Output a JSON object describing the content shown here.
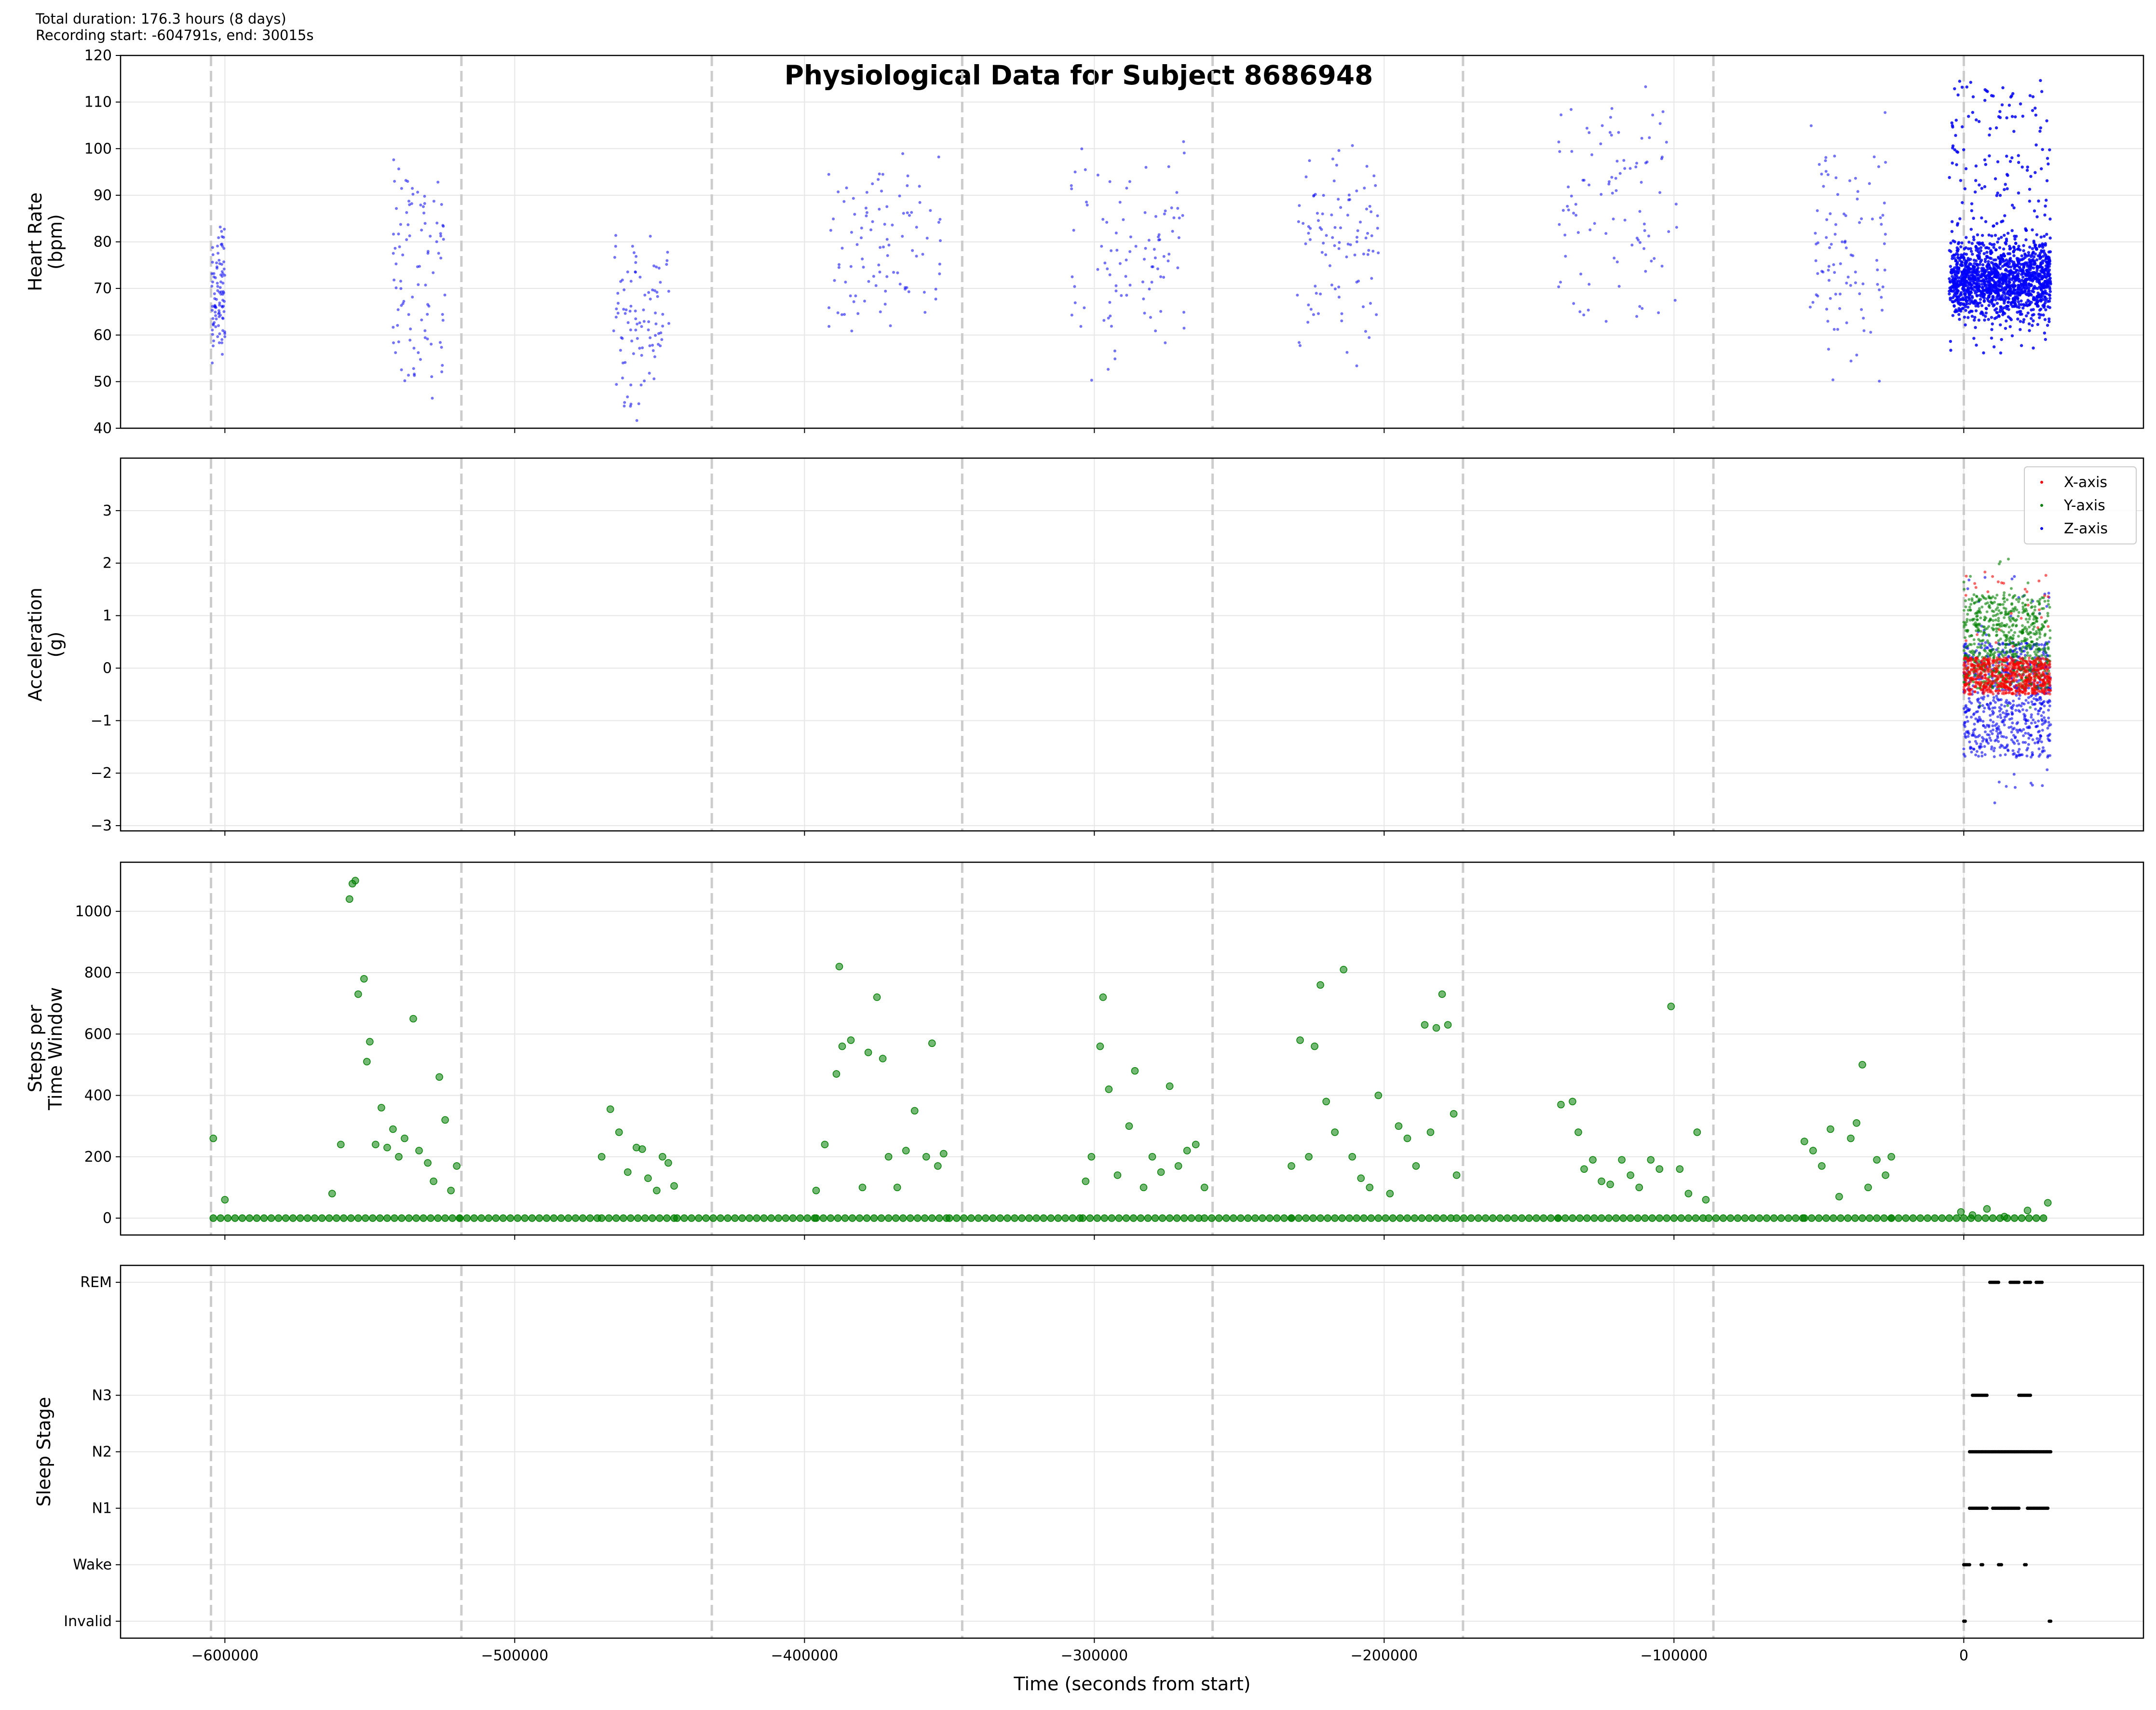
{
  "header": {
    "duration_line": "Total duration: 176.3 hours (8 days)",
    "recording_line": "Recording start: -604791s, end: 30015s"
  },
  "title": "Physiological Data for Subject 8686948",
  "colors": {
    "heart_rate": "#0000ff",
    "x_axis": "#ff0000",
    "y_axis": "#008000",
    "z_axis": "#0000ff",
    "steps": "#008000",
    "sleep": "#000000",
    "day_marker": "#cccccc",
    "grid": "#e6e6e6"
  },
  "chart_data": [
    {
      "id": "hr",
      "type": "scatter",
      "ylabel": [
        "Heart Rate",
        "(bpm)"
      ],
      "xlim": [
        -636000,
        62000
      ],
      "ylim": [
        40,
        120
      ],
      "yticks": [
        40,
        50,
        60,
        70,
        80,
        90,
        100,
        110,
        120
      ],
      "series": [
        {
          "name": "",
          "color": "#0000ff",
          "clusters": [
            {
              "x": [
                -604500,
                -600000
              ],
              "y": [
                53,
                86
              ]
            },
            {
              "x": [
                -542000,
                -524000
              ],
              "y": [
                44,
                103
              ]
            },
            {
              "x": [
                -466000,
                -446000
              ],
              "y": [
                41,
                85
              ]
            },
            {
              "x": [
                -392000,
                -353000
              ],
              "y": [
                57,
                102
              ]
            },
            {
              "x": [
                -308000,
                -268000
              ],
              "y": [
                47,
                104
              ]
            },
            {
              "x": [
                -230000,
                -202000
              ],
              "y": [
                52,
                107
              ]
            },
            {
              "x": [
                -140000,
                -99000
              ],
              "y": [
                57,
                117
              ]
            },
            {
              "x": [
                -53000,
                -27000
              ],
              "y": [
                43,
                113
              ]
            },
            {
              "x": [
                -5000,
                30000
              ],
              "y": [
                56,
                115
              ],
              "dense": true
            }
          ]
        }
      ]
    },
    {
      "id": "acc",
      "type": "scatter",
      "ylabel": [
        "Acceleration",
        "(g)"
      ],
      "xlim": [
        -636000,
        62000
      ],
      "ylim": [
        -3.1,
        4.0
      ],
      "yticks": [
        -3,
        -2,
        -1,
        0,
        1,
        2,
        3
      ],
      "legend": {
        "position": "top-right"
      },
      "series": [
        {
          "name": "X-axis",
          "color": "#ff0000",
          "x_range": [
            0,
            30000
          ],
          "y_range": [
            -0.4,
            2.0
          ]
        },
        {
          "name": "Y-axis",
          "color": "#008000",
          "x_range": [
            0,
            30000
          ],
          "y_range": [
            -0.8,
            2.2
          ]
        },
        {
          "name": "Z-axis",
          "color": "#0000ff",
          "x_range": [
            0,
            30000
          ],
          "y_range": [
            -2.8,
            1.8
          ]
        }
      ]
    },
    {
      "id": "steps",
      "type": "scatter",
      "ylabel": [
        "Steps per",
        "Time Window"
      ],
      "xlim": [
        -636000,
        62000
      ],
      "ylim": [
        -55,
        1160
      ],
      "yticks": [
        0,
        200,
        400,
        600,
        800,
        1000
      ],
      "series": [
        {
          "name": "",
          "color": "#008000",
          "points": [
            [
              -604000,
              260
            ],
            [
              -600000,
              60
            ],
            [
              -557000,
              1040
            ],
            [
              -556000,
              1090
            ],
            [
              -555000,
              1100
            ],
            [
              -554000,
              730
            ],
            [
              -552000,
              780
            ],
            [
              -551000,
              510
            ],
            [
              -550000,
              575
            ],
            [
              -548000,
              240
            ],
            [
              -546000,
              360
            ],
            [
              -544000,
              230
            ],
            [
              -542000,
              290
            ],
            [
              -540000,
              200
            ],
            [
              -538000,
              260
            ],
            [
              -535000,
              650
            ],
            [
              -533000,
              220
            ],
            [
              -530000,
              180
            ],
            [
              -528000,
              120
            ],
            [
              -526000,
              460
            ],
            [
              -524000,
              320
            ],
            [
              -522000,
              90
            ],
            [
              -520000,
              170
            ],
            [
              -560000,
              240
            ],
            [
              -563000,
              80
            ],
            [
              -470000,
              200
            ],
            [
              -467000,
              355
            ],
            [
              -464000,
              280
            ],
            [
              -461000,
              150
            ],
            [
              -458000,
              230
            ],
            [
              -456000,
              225
            ],
            [
              -454000,
              130
            ],
            [
              -451000,
              90
            ],
            [
              -449000,
              200
            ],
            [
              -447000,
              180
            ],
            [
              -445000,
              105
            ],
            [
              -396000,
              90
            ],
            [
              -393000,
              240
            ],
            [
              -389000,
              470
            ],
            [
              -388000,
              820
            ],
            [
              -387000,
              560
            ],
            [
              -384000,
              580
            ],
            [
              -378000,
              540
            ],
            [
              -375000,
              720
            ],
            [
              -373000,
              520
            ],
            [
              -371000,
              200
            ],
            [
              -368000,
              100
            ],
            [
              -365000,
              220
            ],
            [
              -362000,
              350
            ],
            [
              -358000,
              200
            ],
            [
              -356000,
              570
            ],
            [
              -354000,
              170
            ],
            [
              -352000,
              210
            ],
            [
              -380000,
              100
            ],
            [
              -303000,
              120
            ],
            [
              -301000,
              200
            ],
            [
              -298000,
              560
            ],
            [
              -297000,
              720
            ],
            [
              -295000,
              420
            ],
            [
              -292000,
              140
            ],
            [
              -288000,
              300
            ],
            [
              -286000,
              480
            ],
            [
              -283000,
              100
            ],
            [
              -280000,
              200
            ],
            [
              -277000,
              150
            ],
            [
              -274000,
              430
            ],
            [
              -271000,
              170
            ],
            [
              -268000,
              220
            ],
            [
              -265000,
              240
            ],
            [
              -262000,
              100
            ],
            [
              -232000,
              170
            ],
            [
              -229000,
              580
            ],
            [
              -226000,
              200
            ],
            [
              -224000,
              560
            ],
            [
              -222000,
              760
            ],
            [
              -220000,
              380
            ],
            [
              -217000,
              280
            ],
            [
              -214000,
              810
            ],
            [
              -211000,
              200
            ],
            [
              -208000,
              130
            ],
            [
              -205000,
              100
            ],
            [
              -202000,
              400
            ],
            [
              -198000,
              80
            ],
            [
              -195000,
              300
            ],
            [
              -192000,
              260
            ],
            [
              -189000,
              170
            ],
            [
              -186000,
              630
            ],
            [
              -184000,
              280
            ],
            [
              -182000,
              620
            ],
            [
              -180000,
              730
            ],
            [
              -178000,
              630
            ],
            [
              -176000,
              340
            ],
            [
              -175000,
              140
            ],
            [
              -139000,
              370
            ],
            [
              -135000,
              380
            ],
            [
              -133000,
              280
            ],
            [
              -131000,
              160
            ],
            [
              -128000,
              190
            ],
            [
              -125000,
              120
            ],
            [
              -122000,
              110
            ],
            [
              -118000,
              190
            ],
            [
              -115000,
              140
            ],
            [
              -112000,
              100
            ],
            [
              -108000,
              190
            ],
            [
              -105000,
              160
            ],
            [
              -101000,
              690
            ],
            [
              -98000,
              160
            ],
            [
              -95000,
              80
            ],
            [
              -92000,
              280
            ],
            [
              -89000,
              60
            ],
            [
              -55000,
              250
            ],
            [
              -52000,
              220
            ],
            [
              -49000,
              170
            ],
            [
              -46000,
              290
            ],
            [
              -43000,
              70
            ],
            [
              -39000,
              260
            ],
            [
              -37000,
              310
            ],
            [
              -35000,
              500
            ],
            [
              -33000,
              100
            ],
            [
              -30000,
              190
            ],
            [
              -27000,
              140
            ],
            [
              -25000,
              200
            ],
            [
              -1000,
              20
            ],
            [
              3000,
              10
            ],
            [
              8000,
              30
            ],
            [
              14000,
              5
            ],
            [
              22000,
              25
            ],
            [
              29000,
              50
            ]
          ],
          "zero_ranges": [
            [
              -604000,
              -519000
            ],
            [
              -519000,
              -470000
            ],
            [
              -470000,
              -444000
            ],
            [
              -444000,
              -396000
            ],
            [
              -396000,
              -350000
            ],
            [
              -350000,
              -304000
            ],
            [
              -304000,
              -262000
            ],
            [
              -262000,
              -232000
            ],
            [
              -232000,
              -175000
            ],
            [
              -175000,
              -140000
            ],
            [
              -140000,
              -88000
            ],
            [
              -88000,
              -55000
            ],
            [
              -55000,
              -25000
            ],
            [
              -25000,
              29000
            ]
          ]
        }
      ]
    },
    {
      "id": "sleep",
      "type": "scatter",
      "ylabel": [
        "Sleep Stage"
      ],
      "xlim": [
        -636000,
        62000
      ],
      "ylim": [
        -0.3,
        6.3
      ],
      "categories": [
        "Invalid",
        "Wake",
        "N1",
        "N2",
        "N3",
        "REM"
      ],
      "category_values": [
        0,
        1,
        2,
        3,
        4,
        6
      ],
      "series": [
        {
          "name": "",
          "color": "#000000",
          "runs": [
            {
              "stage": "REM",
              "ranges": [
                [
                  9000,
                  12000
                ],
                [
                  16000,
                  19000
                ],
                [
                  21000,
                  23000
                ],
                [
                  25000,
                  27000
                ]
              ]
            },
            {
              "stage": "N3",
              "ranges": [
                [
                  3000,
                  8000
                ],
                [
                  19000,
                  23000
                ]
              ]
            },
            {
              "stage": "N2",
              "ranges": [
                [
                  2000,
                  30000
                ]
              ]
            },
            {
              "stage": "N1",
              "ranges": [
                [
                  2000,
                  8000
                ],
                [
                  10000,
                  19000
                ],
                [
                  22000,
                  29000
                ]
              ]
            },
            {
              "stage": "Wake",
              "ranges": [
                [
                  0,
                  2000
                ],
                [
                  6000,
                  6500
                ],
                [
                  12000,
                  13000
                ],
                [
                  21000,
                  21500
                ]
              ]
            },
            {
              "stage": "Invalid",
              "ranges": [
                [
                  0,
                  500
                ],
                [
                  29500,
                  30000
                ]
              ]
            }
          ]
        }
      ]
    }
  ],
  "x_axis": {
    "label": "Time (seconds from start)",
    "ticks": [
      -600000,
      -500000,
      -400000,
      -300000,
      -200000,
      -100000,
      0
    ],
    "tick_labels": [
      "−600000",
      "−500000",
      "−400000",
      "−300000",
      "−200000",
      "−100000",
      "0"
    ],
    "day_markers": [
      -604791,
      -518391,
      -431991,
      -345591,
      -259191,
      -172791,
      -86391,
      9
    ]
  },
  "legend_labels": [
    "X-axis",
    "Y-axis",
    "Z-axis"
  ]
}
